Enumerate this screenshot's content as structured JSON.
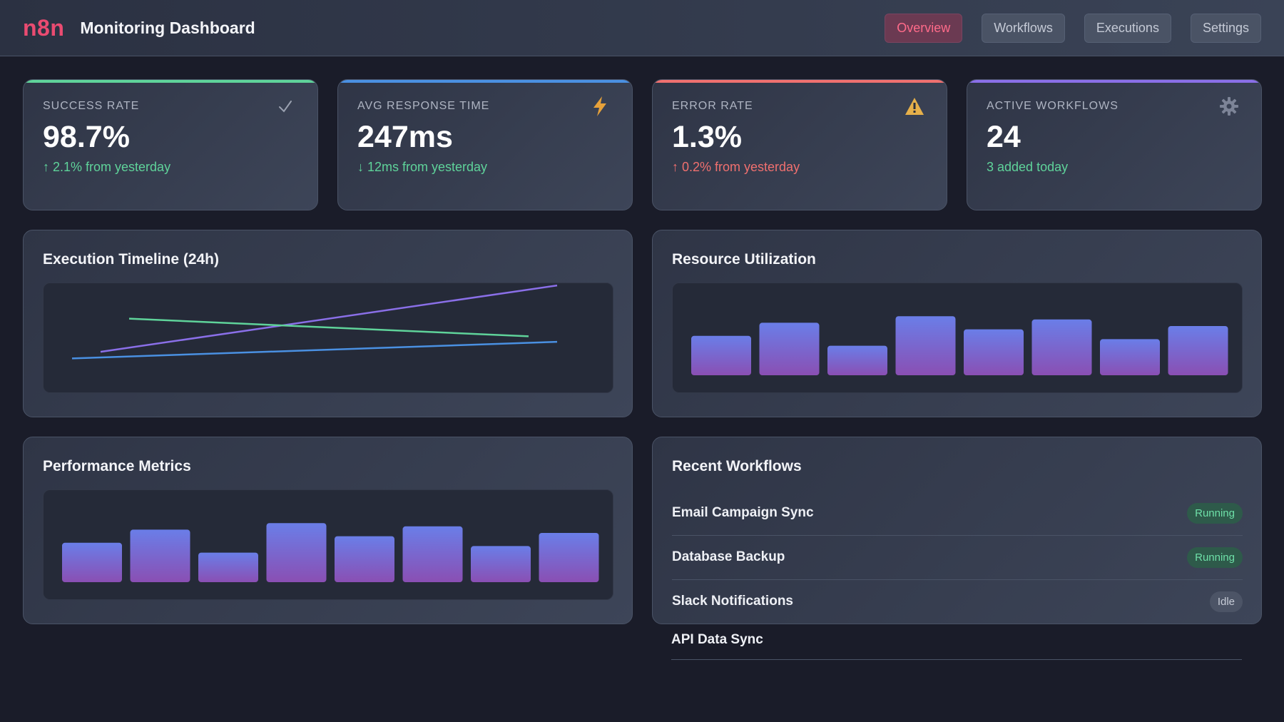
{
  "header": {
    "logo": "n8n",
    "title": "Monitoring Dashboard",
    "nav": [
      {
        "label": "Overview",
        "active": true
      },
      {
        "label": "Workflows",
        "active": false
      },
      {
        "label": "Executions",
        "active": false
      },
      {
        "label": "Settings",
        "active": false
      }
    ]
  },
  "stats": [
    {
      "label": "SUCCESS RATE",
      "value": "98.7%",
      "change": "↑ 2.1% from yesterday",
      "change_color": "green",
      "accent": "#5fd39a",
      "icon": "check-icon"
    },
    {
      "label": "AVG RESPONSE TIME",
      "value": "247ms",
      "change": "↓ 12ms from yesterday",
      "change_color": "green",
      "accent": "#4a90e2",
      "icon": "lightning-icon"
    },
    {
      "label": "ERROR RATE",
      "value": "1.3%",
      "change": "↑ 0.2% from yesterday",
      "change_color": "red",
      "accent": "#f0706f",
      "icon": "warning-icon"
    },
    {
      "label": "ACTIVE WORKFLOWS",
      "value": "24",
      "change": "3 added today",
      "change_color": "green",
      "accent": "#8a6fe8",
      "icon": "gear-icon"
    }
  ],
  "panels": {
    "timeline": {
      "title": "Execution Timeline (24h)"
    },
    "resources": {
      "title": "Resource Utilization"
    },
    "performance": {
      "title": "Performance Metrics"
    },
    "recent": {
      "title": "Recent Workflows"
    }
  },
  "chart_data": [
    {
      "type": "line",
      "title": "Execution Timeline (24h)",
      "series": [
        {
          "color": "#8a6fe8",
          "values": [
            0.38,
            0.98
          ]
        },
        {
          "color": "#5fd39a",
          "values": [
            0.68,
            0.52
          ]
        },
        {
          "color": "#4a90e2",
          "values": [
            0.32,
            0.47
          ]
        }
      ]
    },
    {
      "type": "bar",
      "title": "Resource Utilization",
      "values": [
        60,
        80,
        45,
        90,
        70,
        85,
        55,
        75
      ],
      "ylim": [
        0,
        100
      ]
    },
    {
      "type": "bar",
      "title": "Performance Metrics",
      "values": [
        60,
        80,
        45,
        90,
        70,
        85,
        55,
        75
      ],
      "ylim": [
        0,
        100
      ]
    }
  ],
  "workflows": [
    {
      "name": "Email Campaign Sync",
      "status": "Running",
      "kind": "running"
    },
    {
      "name": "Database Backup",
      "status": "Running",
      "kind": "running"
    },
    {
      "name": "Slack Notifications",
      "status": "Idle",
      "kind": "idle"
    },
    {
      "name": "API Data Sync",
      "status": "",
      "kind": ""
    }
  ],
  "colors": {
    "bar_top": "#6a7ee8",
    "bar_bottom": "#8a4fb3"
  }
}
